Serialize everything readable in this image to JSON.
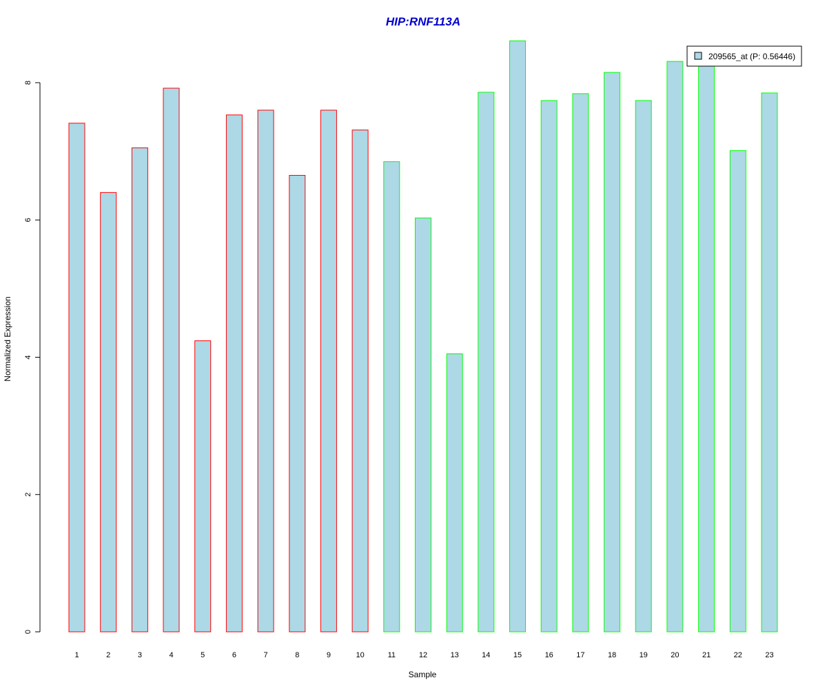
{
  "chart_data": {
    "type": "bar",
    "title": "HIP:RNF113A",
    "xlabel": "Sample",
    "ylabel": "Normalized Expression",
    "ylim": [
      0,
      8.6
    ],
    "yticks": [
      0,
      2,
      4,
      6,
      8
    ],
    "categories": [
      "1",
      "2",
      "3",
      "4",
      "5",
      "6",
      "7",
      "8",
      "9",
      "10",
      "11",
      "12",
      "13",
      "14",
      "15",
      "16",
      "17",
      "18",
      "19",
      "20",
      "21",
      "22",
      "23"
    ],
    "series": [
      {
        "name": "209565_at (P: 0.56446)",
        "values": [
          7.41,
          6.4,
          7.05,
          7.92,
          4.24,
          7.53,
          7.6,
          6.65,
          7.6,
          7.31,
          6.85,
          6.03,
          4.05,
          7.86,
          8.61,
          7.74,
          7.84,
          8.15,
          7.74,
          8.31,
          8.25,
          7.01,
          7.85
        ]
      }
    ],
    "bar_fill": "#add8e6",
    "group_border_colors": [
      "#ff0000",
      "#ff0000",
      "#ff0000",
      "#ff0000",
      "#ff0000",
      "#ff0000",
      "#ff0000",
      "#ff0000",
      "#ff0000",
      "#ff0000",
      "#00ff00",
      "#00ff00",
      "#00ff00",
      "#00ff00",
      "#00ff00",
      "#00ff00",
      "#00ff00",
      "#00ff00",
      "#00ff00",
      "#00ff00",
      "#00ff00",
      "#00ff00",
      "#00ff00"
    ],
    "legend_position": "top-right",
    "grid": false
  }
}
